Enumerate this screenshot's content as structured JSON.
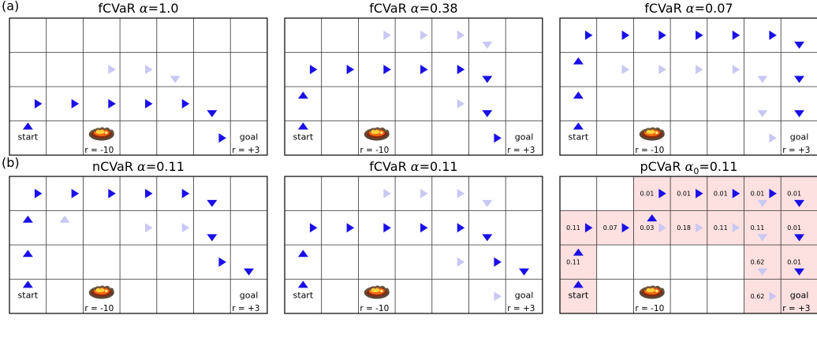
{
  "row_labels": [
    "(a)",
    "(b)"
  ],
  "labels": {
    "start": "start",
    "goal": "goal",
    "lava_reward": "r = -10",
    "goal_reward": "r = +3"
  },
  "colors": {
    "arrow": "#1a10e6",
    "arrow_faint": "#c9c8f3",
    "cell_highlight": "#fde0e0",
    "grid": "#000000"
  },
  "grid": {
    "cols": 7,
    "rows": 4
  },
  "panels": [
    {
      "id": "a1",
      "title_pre": "fCVaR ",
      "title_sym": "α",
      "title_sub": "",
      "title_post": "=1.0",
      "arrows": [
        {
          "r": 3,
          "c": 0,
          "d": "up",
          "f": false
        },
        {
          "r": 2,
          "c": 0,
          "d": "right",
          "f": false
        },
        {
          "r": 2,
          "c": 1,
          "d": "right",
          "f": false
        },
        {
          "r": 2,
          "c": 2,
          "d": "right",
          "f": false
        },
        {
          "r": 2,
          "c": 3,
          "d": "right",
          "f": false
        },
        {
          "r": 2,
          "c": 4,
          "d": "right",
          "f": false
        },
        {
          "r": 2,
          "c": 5,
          "d": "down",
          "f": false
        },
        {
          "r": 3,
          "c": 5,
          "d": "right",
          "f": false
        },
        {
          "r": 1,
          "c": 2,
          "d": "right",
          "f": true
        },
        {
          "r": 1,
          "c": 3,
          "d": "right",
          "f": true
        },
        {
          "r": 1,
          "c": 4,
          "d": "down",
          "f": true
        }
      ],
      "values": [],
      "highlight": []
    },
    {
      "id": "a2",
      "title_pre": "fCVaR ",
      "title_sym": "α",
      "title_sub": "",
      "title_post": "=0.38",
      "arrows": [
        {
          "r": 3,
          "c": 0,
          "d": "up",
          "f": false
        },
        {
          "r": 2,
          "c": 0,
          "d": "up",
          "f": false
        },
        {
          "r": 1,
          "c": 0,
          "d": "right",
          "f": false
        },
        {
          "r": 1,
          "c": 1,
          "d": "right",
          "f": false
        },
        {
          "r": 1,
          "c": 2,
          "d": "right",
          "f": false
        },
        {
          "r": 1,
          "c": 3,
          "d": "right",
          "f": false
        },
        {
          "r": 1,
          "c": 4,
          "d": "right",
          "f": false
        },
        {
          "r": 1,
          "c": 5,
          "d": "down",
          "f": false
        },
        {
          "r": 2,
          "c": 5,
          "d": "down",
          "f": false
        },
        {
          "r": 3,
          "c": 5,
          "d": "right",
          "f": false
        },
        {
          "r": 0,
          "c": 2,
          "d": "right",
          "f": true
        },
        {
          "r": 0,
          "c": 3,
          "d": "right",
          "f": true
        },
        {
          "r": 0,
          "c": 4,
          "d": "right",
          "f": true
        },
        {
          "r": 0,
          "c": 5,
          "d": "down",
          "f": true
        },
        {
          "r": 2,
          "c": 4,
          "d": "right",
          "f": true
        }
      ],
      "values": [],
      "highlight": []
    },
    {
      "id": "a3",
      "title_pre": "fCVaR ",
      "title_sym": "α",
      "title_sub": "",
      "title_post": "=0.07",
      "arrows": [
        {
          "r": 3,
          "c": 0,
          "d": "up",
          "f": false
        },
        {
          "r": 2,
          "c": 0,
          "d": "up",
          "f": false
        },
        {
          "r": 1,
          "c": 0,
          "d": "up",
          "f": false
        },
        {
          "r": 0,
          "c": 0,
          "d": "right",
          "f": false
        },
        {
          "r": 0,
          "c": 1,
          "d": "right",
          "f": false
        },
        {
          "r": 0,
          "c": 2,
          "d": "right",
          "f": false
        },
        {
          "r": 0,
          "c": 3,
          "d": "right",
          "f": false
        },
        {
          "r": 0,
          "c": 4,
          "d": "right",
          "f": false
        },
        {
          "r": 0,
          "c": 5,
          "d": "right",
          "f": false
        },
        {
          "r": 0,
          "c": 6,
          "d": "down",
          "f": false
        },
        {
          "r": 1,
          "c": 6,
          "d": "down",
          "f": false
        },
        {
          "r": 2,
          "c": 6,
          "d": "down",
          "f": false
        },
        {
          "r": 1,
          "c": 1,
          "d": "right",
          "f": true
        },
        {
          "r": 1,
          "c": 2,
          "d": "right",
          "f": true
        },
        {
          "r": 1,
          "c": 3,
          "d": "right",
          "f": true
        },
        {
          "r": 1,
          "c": 4,
          "d": "right",
          "f": true
        },
        {
          "r": 1,
          "c": 5,
          "d": "down",
          "f": true
        },
        {
          "r": 2,
          "c": 5,
          "d": "down",
          "f": true
        },
        {
          "r": 3,
          "c": 5,
          "d": "right",
          "f": true
        }
      ],
      "values": [],
      "highlight": []
    },
    {
      "id": "b1",
      "title_pre": "nCVaR ",
      "title_sym": "α",
      "title_sub": "",
      "title_post": "=0.11",
      "arrows": [
        {
          "r": 3,
          "c": 0,
          "d": "up",
          "f": false
        },
        {
          "r": 2,
          "c": 0,
          "d": "up",
          "f": false
        },
        {
          "r": 1,
          "c": 0,
          "d": "up",
          "f": false
        },
        {
          "r": 0,
          "c": 0,
          "d": "right",
          "f": false
        },
        {
          "r": 0,
          "c": 1,
          "d": "right",
          "f": false
        },
        {
          "r": 0,
          "c": 2,
          "d": "right",
          "f": false
        },
        {
          "r": 0,
          "c": 3,
          "d": "right",
          "f": false
        },
        {
          "r": 0,
          "c": 4,
          "d": "right",
          "f": false
        },
        {
          "r": 0,
          "c": 5,
          "d": "down",
          "f": false
        },
        {
          "r": 1,
          "c": 5,
          "d": "down",
          "f": false
        },
        {
          "r": 2,
          "c": 5,
          "d": "right",
          "f": false
        },
        {
          "r": 2,
          "c": 6,
          "d": "down",
          "f": false
        },
        {
          "r": 1,
          "c": 1,
          "d": "up",
          "f": true
        },
        {
          "r": 1,
          "c": 3,
          "d": "right",
          "f": true
        },
        {
          "r": 1,
          "c": 4,
          "d": "right",
          "f": true
        }
      ],
      "values": [],
      "highlight": []
    },
    {
      "id": "b2",
      "title_pre": "fCVaR ",
      "title_sym": "α",
      "title_sub": "",
      "title_post": "=0.11",
      "arrows": [
        {
          "r": 3,
          "c": 0,
          "d": "up",
          "f": false
        },
        {
          "r": 2,
          "c": 0,
          "d": "up",
          "f": false
        },
        {
          "r": 1,
          "c": 0,
          "d": "right",
          "f": false
        },
        {
          "r": 1,
          "c": 1,
          "d": "right",
          "f": false
        },
        {
          "r": 1,
          "c": 2,
          "d": "right",
          "f": false
        },
        {
          "r": 1,
          "c": 3,
          "d": "right",
          "f": false
        },
        {
          "r": 1,
          "c": 4,
          "d": "right",
          "f": false
        },
        {
          "r": 1,
          "c": 5,
          "d": "down",
          "f": false
        },
        {
          "r": 2,
          "c": 5,
          "d": "right",
          "f": false
        },
        {
          "r": 2,
          "c": 6,
          "d": "down",
          "f": false
        },
        {
          "r": 0,
          "c": 2,
          "d": "right",
          "f": true
        },
        {
          "r": 0,
          "c": 3,
          "d": "right",
          "f": true
        },
        {
          "r": 0,
          "c": 4,
          "d": "right",
          "f": true
        },
        {
          "r": 0,
          "c": 5,
          "d": "down",
          "f": true
        },
        {
          "r": 2,
          "c": 4,
          "d": "right",
          "f": true
        },
        {
          "r": 3,
          "c": 5,
          "d": "right",
          "f": true
        }
      ],
      "values": [],
      "highlight": []
    },
    {
      "id": "b3",
      "title_pre": "pCVaR ",
      "title_sym": "α",
      "title_sub": "0",
      "title_post": "=0.11",
      "arrows": [
        {
          "r": 3,
          "c": 0,
          "d": "up",
          "f": false
        },
        {
          "r": 2,
          "c": 0,
          "d": "up",
          "f": false
        },
        {
          "r": 1,
          "c": 0,
          "d": "right",
          "f": false
        },
        {
          "r": 1,
          "c": 1,
          "d": "right",
          "f": false
        },
        {
          "r": 1,
          "c": 2,
          "d": "up",
          "f": false
        },
        {
          "r": 0,
          "c": 2,
          "d": "right",
          "f": false
        },
        {
          "r": 0,
          "c": 3,
          "d": "right",
          "f": false
        },
        {
          "r": 0,
          "c": 4,
          "d": "right",
          "f": false
        },
        {
          "r": 0,
          "c": 5,
          "d": "right",
          "f": false
        },
        {
          "r": 0,
          "c": 6,
          "d": "down",
          "f": false
        },
        {
          "r": 1,
          "c": 6,
          "d": "down",
          "f": false
        },
        {
          "r": 2,
          "c": 6,
          "d": "down",
          "f": false
        },
        {
          "r": 1,
          "c": 2,
          "d": "right",
          "f": true
        },
        {
          "r": 1,
          "c": 3,
          "d": "right",
          "f": true
        },
        {
          "r": 1,
          "c": 4,
          "d": "right",
          "f": true
        },
        {
          "r": 0,
          "c": 5,
          "d": "down",
          "f": true
        },
        {
          "r": 1,
          "c": 5,
          "d": "down",
          "f": true
        },
        {
          "r": 2,
          "c": 5,
          "d": "down",
          "f": true
        },
        {
          "r": 3,
          "c": 5,
          "d": "right",
          "f": true
        }
      ],
      "values": [
        {
          "r": 0,
          "c": 2,
          "t": "0.01"
        },
        {
          "r": 0,
          "c": 3,
          "t": "0.01"
        },
        {
          "r": 0,
          "c": 4,
          "t": "0.01"
        },
        {
          "r": 0,
          "c": 5,
          "t": "0.01"
        },
        {
          "r": 0,
          "c": 6,
          "t": "0.01"
        },
        {
          "r": 1,
          "c": 0,
          "t": "0.11"
        },
        {
          "r": 1,
          "c": 1,
          "t": "0.07"
        },
        {
          "r": 1,
          "c": 2,
          "t": "0.03"
        },
        {
          "r": 1,
          "c": 3,
          "t": "0.18"
        },
        {
          "r": 1,
          "c": 4,
          "t": "0.11"
        },
        {
          "r": 1,
          "c": 5,
          "t": "0.11"
        },
        {
          "r": 1,
          "c": 6,
          "t": "0.01"
        },
        {
          "r": 2,
          "c": 0,
          "t": "0.11"
        },
        {
          "r": 2,
          "c": 5,
          "t": "0.62"
        },
        {
          "r": 2,
          "c": 6,
          "t": "0.01"
        },
        {
          "r": 3,
          "c": 5,
          "t": "0.62"
        }
      ],
      "highlight": [
        {
          "r": 0,
          "c": 2
        },
        {
          "r": 0,
          "c": 3
        },
        {
          "r": 0,
          "c": 4
        },
        {
          "r": 0,
          "c": 5
        },
        {
          "r": 0,
          "c": 6
        },
        {
          "r": 1,
          "c": 0
        },
        {
          "r": 1,
          "c": 1
        },
        {
          "r": 1,
          "c": 2
        },
        {
          "r": 1,
          "c": 3
        },
        {
          "r": 1,
          "c": 4
        },
        {
          "r": 1,
          "c": 5
        },
        {
          "r": 1,
          "c": 6
        },
        {
          "r": 2,
          "c": 0
        },
        {
          "r": 2,
          "c": 5
        },
        {
          "r": 2,
          "c": 6
        },
        {
          "r": 3,
          "c": 0
        },
        {
          "r": 3,
          "c": 5
        },
        {
          "r": 3,
          "c": 6
        }
      ]
    }
  ]
}
